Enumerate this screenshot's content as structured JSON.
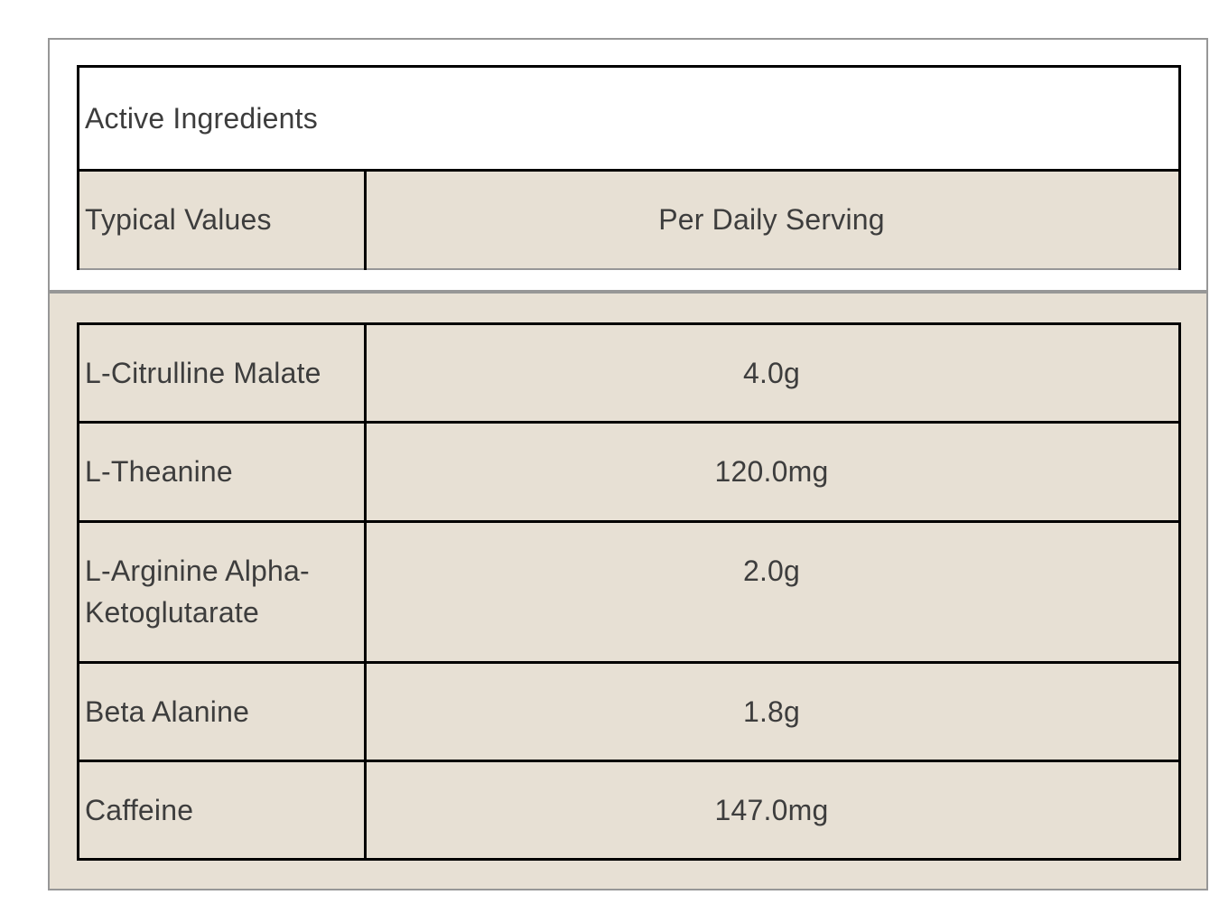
{
  "colors": {
    "beige": "#e7e0d4",
    "card_border": "#979797",
    "table_border": "#000000",
    "text": "#3d3d3d"
  },
  "header_table": {
    "title": "Active Ingredients",
    "label_column": "Typical Values",
    "value_column": "Per Daily Serving"
  },
  "ingredients_table": {
    "rows": [
      {
        "name": "L-Citrulline Malate",
        "amount": "4.0g"
      },
      {
        "name": "L-Theanine",
        "amount": "120.0mg"
      },
      {
        "name": "L-Arginine Alpha-Ketoglutarate",
        "amount": "2.0g"
      },
      {
        "name": "Beta Alanine",
        "amount": "1.8g"
      },
      {
        "name": "Caffeine",
        "amount": "147.0mg"
      }
    ]
  }
}
